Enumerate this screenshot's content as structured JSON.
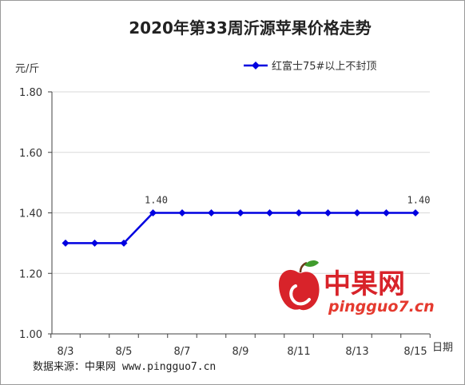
{
  "chart_data": {
    "type": "line",
    "title": "2020年第33周沂源苹果价格走势",
    "ylabel": "元/斤",
    "xlabel": "日期",
    "categories": [
      "8/3",
      "8/4",
      "8/5",
      "8/6",
      "8/7",
      "8/8",
      "8/9",
      "8/10",
      "8/11",
      "8/12",
      "8/13",
      "8/14",
      "8/15"
    ],
    "x_tick_labels": [
      "8/3",
      "8/5",
      "8/7",
      "8/9",
      "8/11",
      "8/13",
      "8/15"
    ],
    "series": [
      {
        "name": "红富士75#以上不封顶",
        "values": [
          1.3,
          1.3,
          1.3,
          1.4,
          1.4,
          1.4,
          1.4,
          1.4,
          1.4,
          1.4,
          1.4,
          1.4,
          1.4
        ],
        "color": "#0000e0"
      }
    ],
    "ylim": [
      1.0,
      1.8
    ],
    "y_ticks": [
      "1.00",
      "1.20",
      "1.40",
      "1.60",
      "1.80"
    ],
    "data_labels": [
      {
        "category": "8/6",
        "text": "1.40"
      },
      {
        "category": "8/15",
        "text": "1.40"
      }
    ],
    "grid": "horizontal",
    "legend_position": "top-right"
  },
  "source": "数据来源：中果网 www.pingguo7.cn",
  "logo": {
    "name": "中果网",
    "url": "pingguo7.cn"
  },
  "colors": {
    "grid": "#d9d9d9",
    "axis": "#404040",
    "series": "#0000e0"
  }
}
